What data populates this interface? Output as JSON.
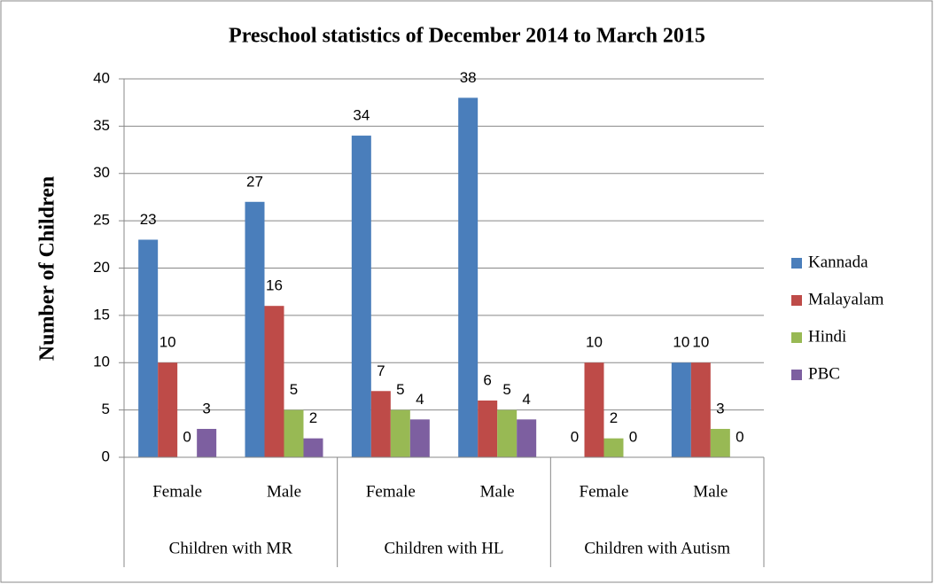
{
  "chart_data": {
    "type": "bar",
    "title": "Preschool statistics of  December 2014 to March 2015",
    "y_label": "Number of Children",
    "categories": [
      "Female",
      "Male",
      "Female",
      "Male",
      "Female",
      "Male"
    ],
    "groups": [
      "Children with MR",
      "Children with HL",
      "Children with  Autism"
    ],
    "series": [
      {
        "name": "Kannada",
        "color": "#4a7ebb",
        "values": [
          23,
          27,
          34,
          38,
          0,
          10
        ]
      },
      {
        "name": "Malayalam",
        "color": "#be4b48",
        "values": [
          10,
          16,
          7,
          6,
          10,
          10
        ]
      },
      {
        "name": "Hindi",
        "color": "#98b954",
        "values": [
          0,
          5,
          5,
          5,
          2,
          3
        ]
      },
      {
        "name": "PBC",
        "color": "#7d5fa0",
        "values": [
          3,
          2,
          4,
          4,
          0,
          0
        ]
      }
    ],
    "ylim": [
      0,
      40
    ],
    "yticks": [
      0,
      5,
      10,
      15,
      20,
      25,
      30,
      35,
      40
    ],
    "grid": true,
    "legend": "right"
  }
}
